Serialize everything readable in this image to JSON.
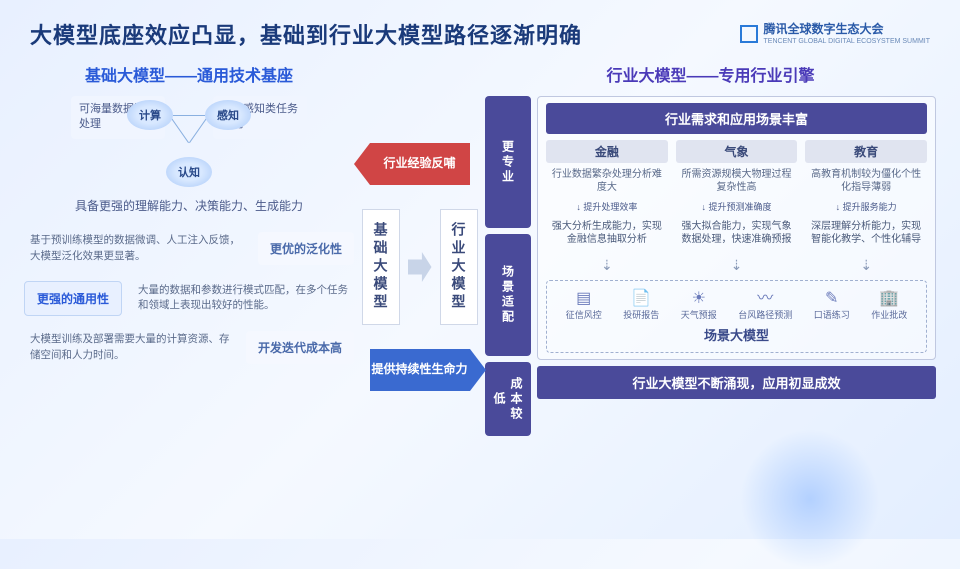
{
  "header": {
    "title": "大模型底座效应凸显，基础到行业大模型路径逐渐明确",
    "logo_cn": "腾讯全球数字生态大会",
    "logo_en": "TENCENT GLOBAL DIGITAL ECOSYSTEM SUMMIT"
  },
  "left": {
    "title": "基础大模型——通用技术基座",
    "nodes": {
      "n1": "计算",
      "n2": "感知",
      "n3": "认知"
    },
    "side1": "可海量数据进行处理",
    "side2": "提升感知类任务性能",
    "caption": "具备更强的理解能力、决策能力、生成能力",
    "rows": [
      {
        "text": "基于预训练模型的数据微调、人工注入反馈，大模型泛化效果更显著。",
        "tag": "更优的泛化性",
        "tagStyle": "tb-light"
      },
      {
        "text": "大量的数据和参数进行模式匹配，在多个任务和领域上表现出较好的性能。",
        "tag": "更强的通用性",
        "tagStyle": "tb-blue",
        "reverse": true
      },
      {
        "text": "大模型训练及部署需要大量的计算资源、存储空间和人力时间。",
        "tag": "开发迭代成本高",
        "tagStyle": "tb-light"
      }
    ]
  },
  "mid": {
    "arrow1": "行业经验反哺",
    "arrow2": "提供持续性生命力",
    "box1": "基础大模型",
    "box2": "行业大模型"
  },
  "right": {
    "title": "行业大模型——专用行业引擎",
    "pills": [
      "更专业",
      "场景适配",
      "成本较低"
    ],
    "topbar": "行业需求和应用场景丰富",
    "industries": [
      {
        "name": "金融",
        "desc": "行业数据繁杂处理分析难度大",
        "improve": "提升处理效率",
        "result": "强大分析生成能力，实现金融信息抽取分析"
      },
      {
        "name": "气象",
        "desc": "所需资源规模大物理过程复杂性高",
        "improve": "提升预测准确度",
        "result": "强大拟合能力，实现气象数据处理，快速准确预报"
      },
      {
        "name": "教育",
        "desc": "高教育机制较为僵化个性化指导薄弱",
        "improve": "提升服务能力",
        "result": "深层理解分析能力，实现智能化教学、个性化辅导"
      }
    ],
    "scenes": [
      {
        "icon": "▤",
        "label": "征信风控"
      },
      {
        "icon": "📄",
        "label": "投研报告"
      },
      {
        "icon": "☀",
        "label": "天气预报"
      },
      {
        "icon": "〰",
        "label": "台风路径预测"
      },
      {
        "icon": "✎",
        "label": "口语练习"
      },
      {
        "icon": "🏢",
        "label": "作业批改"
      }
    ],
    "scene_title": "场景大模型",
    "bottombar": "行业大模型不断涌现，应用初显成效"
  }
}
